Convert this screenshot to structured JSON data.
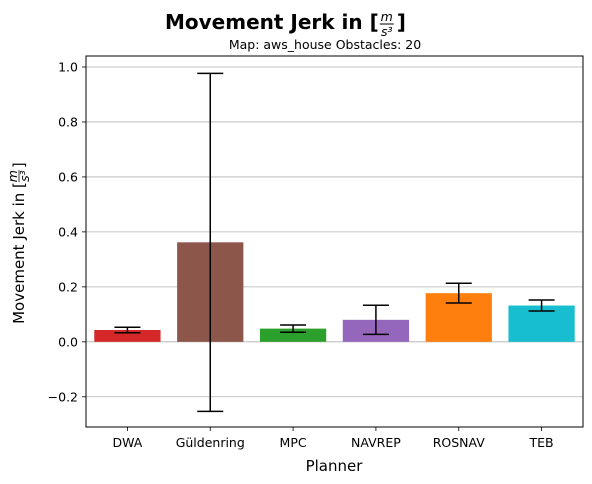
{
  "chart_data": {
    "type": "bar",
    "title": "Movement Jerk in [m/s³]",
    "title_parts": {
      "prefix": "Movement Jerk in [",
      "num": "m",
      "den": "s³",
      "suffix": "]"
    },
    "subtitle": "Map: aws_house Obstacles: 20",
    "xlabel": "Planner",
    "ylabel": "Movement Jerk in [m/s³]",
    "ylabel_parts": {
      "prefix": "Movement Jerk in [",
      "num": "m",
      "den": "s³",
      "suffix": "]"
    },
    "categories": [
      "DWA",
      "Güldenring",
      "MPC",
      "NAVREP",
      "ROSNAV",
      "TEB"
    ],
    "values": [
      0.043,
      0.362,
      0.048,
      0.08,
      0.177,
      0.132
    ],
    "error": [
      0.01,
      0.615,
      0.013,
      0.053,
      0.036,
      0.02
    ],
    "colors": [
      "#d62728",
      "#8c564b",
      "#2ca02c",
      "#9467bd",
      "#ff7f0e",
      "#17becf"
    ],
    "ylim": [
      -0.31,
      1.04
    ],
    "yticks": [
      -0.2,
      0.0,
      0.2,
      0.4,
      0.6,
      0.8,
      1.0
    ],
    "ytick_labels": [
      "−0.2",
      "0.0",
      "0.2",
      "0.4",
      "0.6",
      "0.8",
      "1.0"
    ],
    "grid": "y"
  }
}
